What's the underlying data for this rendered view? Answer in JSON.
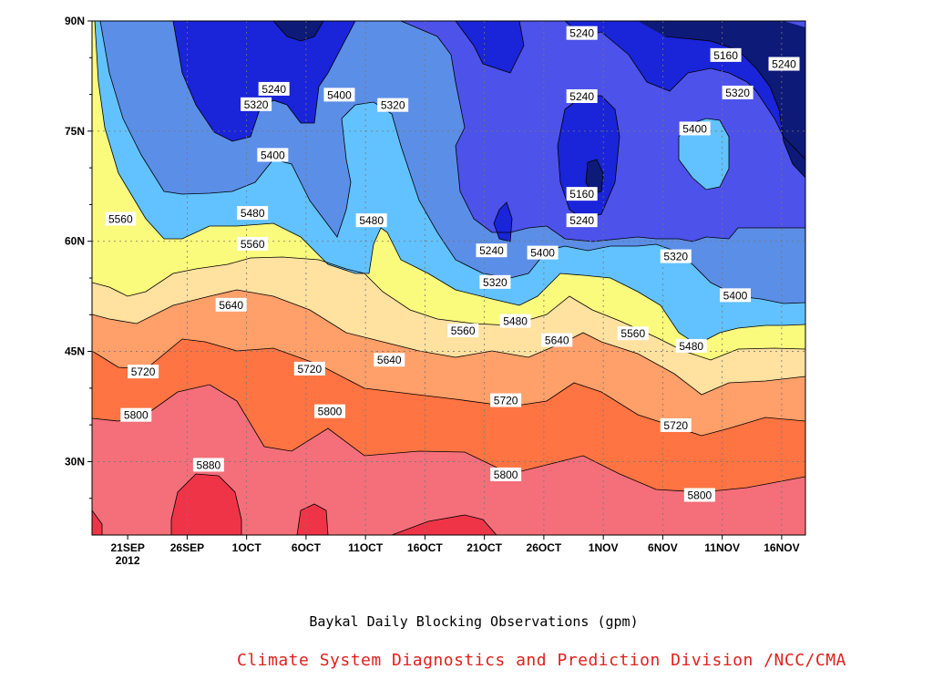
{
  "chart_data": {
    "type": "heatmap",
    "title": "Baykal Daily Blocking Observations (gpm)",
    "credit": "Climate System Diagnostics and Prediction Division /NCC/CMA",
    "x_axis": {
      "ticks": [
        "21SEP",
        "26SEP",
        "1OCT",
        "6OCT",
        "11OCT",
        "16OCT",
        "21OCT",
        "26OCT",
        "1NOV",
        "6NOV",
        "11NOV",
        "16NOV"
      ],
      "year_label": "2012",
      "range_days": [
        -3,
        57
      ]
    },
    "y_axis": {
      "ticks": [
        "30N",
        "45N",
        "60N",
        "75N",
        "90N"
      ],
      "tick_values": [
        30,
        45,
        60,
        75,
        90
      ],
      "range": [
        20,
        90
      ]
    },
    "grid": true,
    "levels": [
      5160,
      5240,
      5320,
      5400,
      5480,
      5560,
      5640,
      5720,
      5800,
      5880
    ],
    "colors": {
      "below_5160": "#0d1a78",
      "5160_5240": "#1a24d8",
      "5240_5320": "#4d52ea",
      "5320_5400": "#5c8ee6",
      "5400_5480": "#62c2ff",
      "5480_5560": "#fafa7c",
      "5560_5640": "#ffe1a0",
      "5640_5720": "#ffa26c",
      "5720_5800": "#ff7442",
      "5800_5880": "#f46f7a",
      "above_5880": "#f03448"
    },
    "contour_labels": [
      {
        "value": "5240",
        "day": 38.2,
        "lat": 88.3
      },
      {
        "value": "5160",
        "day": 50.3,
        "lat": 85.3
      },
      {
        "value": "5240",
        "day": 55.2,
        "lat": 84.1
      },
      {
        "value": "5240",
        "day": 12.3,
        "lat": 80.7
      },
      {
        "value": "5320",
        "day": 10.8,
        "lat": 78.6
      },
      {
        "value": "5400",
        "day": 17.8,
        "lat": 79.9
      },
      {
        "value": "5320",
        "day": 22.3,
        "lat": 78.5
      },
      {
        "value": "5240",
        "day": 38.2,
        "lat": 79.7
      },
      {
        "value": "5320",
        "day": 51.3,
        "lat": 80.2
      },
      {
        "value": "5400",
        "day": 47.7,
        "lat": 75.3
      },
      {
        "value": "5400",
        "day": 12.2,
        "lat": 71.7
      },
      {
        "value": "5160",
        "day": 38.2,
        "lat": 66.4
      },
      {
        "value": "5480",
        "day": 10.5,
        "lat": 63.8
      },
      {
        "value": "5560",
        "day": -0.6,
        "lat": 63.0
      },
      {
        "value": "5480",
        "day": 20.5,
        "lat": 62.8
      },
      {
        "value": "5240",
        "day": 38.2,
        "lat": 62.8
      },
      {
        "value": "5560",
        "day": 10.5,
        "lat": 59.6
      },
      {
        "value": "5240",
        "day": 30.6,
        "lat": 58.7
      },
      {
        "value": "5400",
        "day": 34.9,
        "lat": 58.4
      },
      {
        "value": "5320",
        "day": 46.1,
        "lat": 57.9
      },
      {
        "value": "5320",
        "day": 30.9,
        "lat": 54.4
      },
      {
        "value": "5400",
        "day": 51.1,
        "lat": 52.6
      },
      {
        "value": "5640",
        "day": 8.7,
        "lat": 51.3
      },
      {
        "value": "5480",
        "day": 32.6,
        "lat": 49.1
      },
      {
        "value": "5560",
        "day": 28.2,
        "lat": 47.8
      },
      {
        "value": "5560",
        "day": 42.5,
        "lat": 47.4
      },
      {
        "value": "5640",
        "day": 36.1,
        "lat": 46.5
      },
      {
        "value": "5480",
        "day": 47.4,
        "lat": 45.7
      },
      {
        "value": "5640",
        "day": 22.0,
        "lat": 43.8
      },
      {
        "value": "5720",
        "day": 1.3,
        "lat": 42.2
      },
      {
        "value": "5720",
        "day": 15.3,
        "lat": 42.6
      },
      {
        "value": "5720",
        "day": 31.8,
        "lat": 38.3
      },
      {
        "value": "5720",
        "day": 46.1,
        "lat": 34.9
      },
      {
        "value": "5800",
        "day": 0.7,
        "lat": 36.3
      },
      {
        "value": "5800",
        "day": 17.0,
        "lat": 36.8
      },
      {
        "value": "5880",
        "day": 6.8,
        "lat": 29.5
      },
      {
        "value": "5800",
        "day": 31.8,
        "lat": 28.2
      },
      {
        "value": "5800",
        "day": 48.1,
        "lat": 25.4
      }
    ]
  }
}
